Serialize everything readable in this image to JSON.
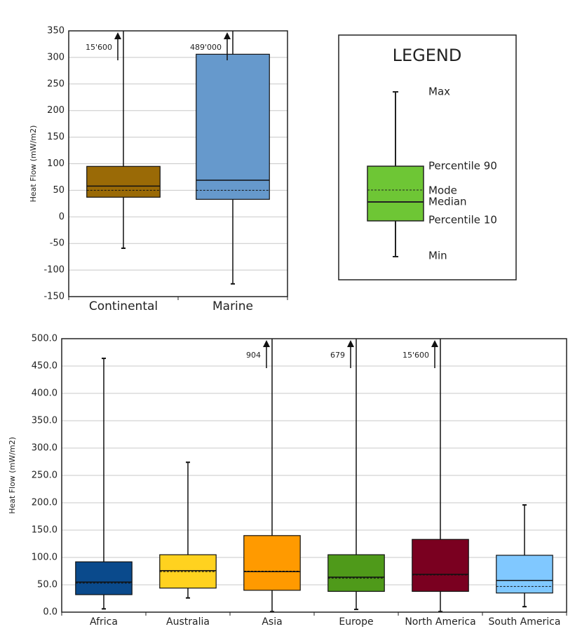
{
  "chart_data": [
    {
      "type": "box",
      "y_label": "Heat Flow (mW/m2)",
      "categories": [
        "Continental",
        "Marine"
      ],
      "colors": [
        "#9a6a06",
        "#6699cc"
      ],
      "min": [
        -59,
        -126
      ],
      "p10": [
        37,
        33
      ],
      "median": [
        58,
        69
      ],
      "mode": [
        50,
        50
      ],
      "p90": [
        95,
        306
      ],
      "max": [
        15600,
        489000
      ],
      "max_labels": [
        "15'600",
        "489'000"
      ],
      "ylim": [
        -150,
        350
      ],
      "yticks": [
        -150,
        -100,
        -50,
        0,
        50,
        100,
        150,
        200,
        250,
        300,
        350
      ],
      "grid": true
    },
    {
      "type": "box",
      "y_label": "Heat Flow (mW/m2)",
      "categories": [
        "Africa",
        "Australia",
        "Asia",
        "Europe",
        "North America",
        "South America"
      ],
      "colors": [
        "#0a4a8c",
        "#ffd21f",
        "#ff9a00",
        "#4f9a1a",
        "#7a0020",
        "#80c8ff"
      ],
      "min": [
        6,
        26,
        1,
        5,
        1,
        10
      ],
      "p10": [
        32,
        44,
        40,
        38,
        38,
        35
      ],
      "median": [
        55,
        76,
        74,
        64,
        69,
        58
      ],
      "mode": [
        53,
        74,
        75,
        62,
        68,
        47
      ],
      "p90": [
        92,
        105,
        140,
        105,
        133,
        104
      ],
      "max": [
        464,
        274,
        904,
        679,
        15600,
        196
      ],
      "max_labels": [
        null,
        null,
        "904",
        "679",
        "15'600",
        null
      ],
      "ylim": [
        0,
        500
      ],
      "yticks": [
        {
          "value": 0,
          "label": "0.0"
        },
        {
          "value": 50,
          "label": "50.0"
        },
        {
          "value": 100,
          "label": "100.0"
        },
        {
          "value": 150,
          "label": "150.0"
        },
        {
          "value": 200,
          "label": "200.0"
        },
        {
          "value": 250,
          "label": "250.0"
        },
        {
          "value": 300,
          "label": "300.0"
        },
        {
          "value": 350,
          "label": "350.0"
        },
        {
          "value": 400,
          "label": "400.0"
        },
        {
          "value": 450,
          "label": "450.0"
        },
        {
          "value": 500,
          "label": "500.0"
        }
      ],
      "grid": true
    }
  ],
  "legend": {
    "title": "LEGEND",
    "max": "Max",
    "p90": "Percentile 90",
    "mode": "Mode",
    "median": "Median",
    "p10": "Percentile 10",
    "min": "Min"
  }
}
